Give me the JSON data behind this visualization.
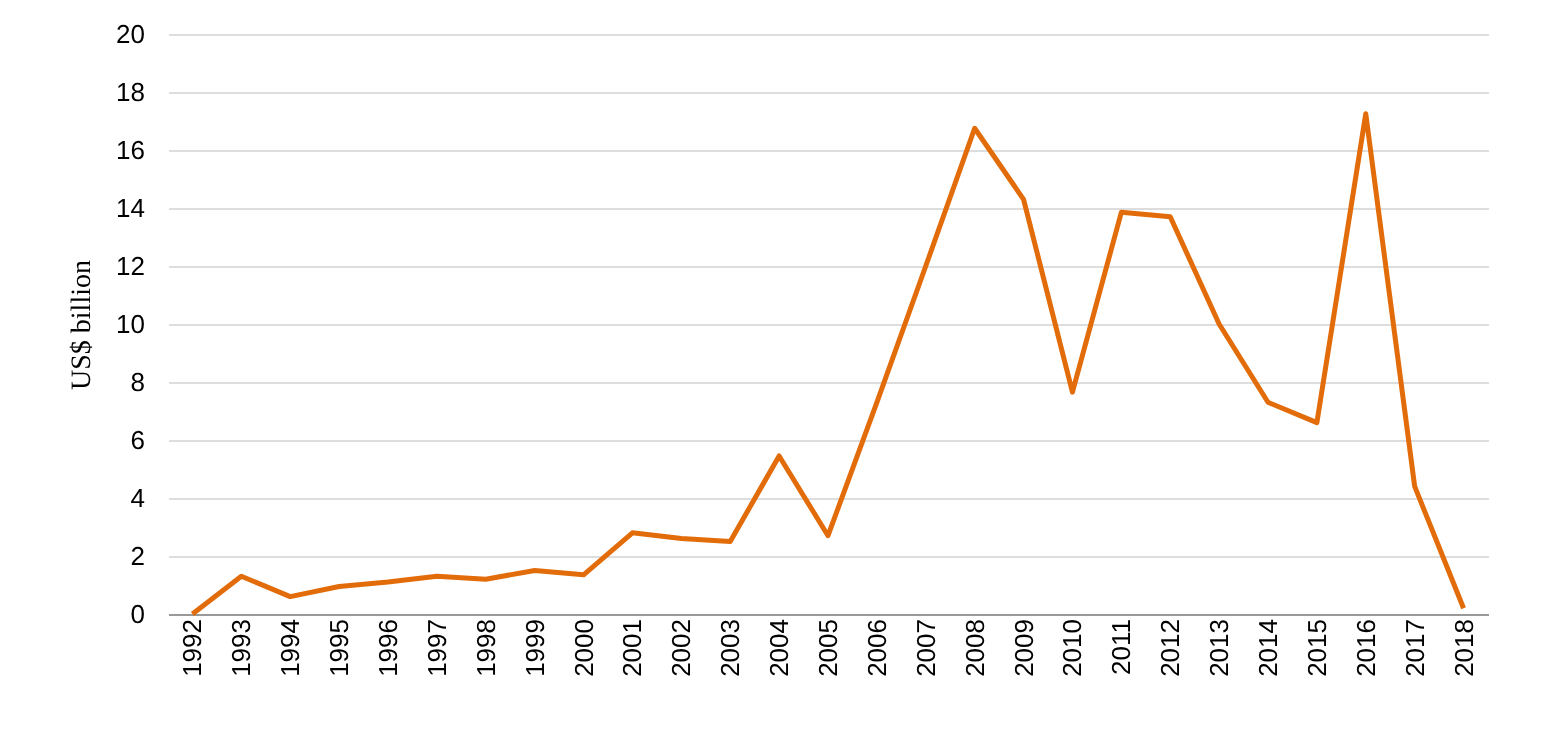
{
  "chart_data": {
    "type": "line",
    "ylabel": "US$ billion",
    "categories": [
      "1992",
      "1993",
      "1994",
      "1995",
      "1996",
      "1997",
      "1998",
      "1999",
      "2000",
      "2001",
      "2002",
      "2003",
      "2004",
      "2005",
      "2006",
      "2007",
      "2008",
      "2009",
      "2010",
      "2011",
      "2012",
      "2013",
      "2014",
      "2015",
      "2016",
      "2017",
      "2018"
    ],
    "series": [
      {
        "color": "#e36c0a",
        "values": [
          0,
          1.3,
          0.6,
          0.95,
          1.1,
          1.3,
          1.2,
          1.5,
          1.35,
          2.8,
          2.6,
          2.5,
          5.45,
          2.7,
          7.3,
          12,
          16.75,
          14.3,
          7.65,
          13.85,
          13.7,
          10,
          7.3,
          6.6,
          17.25,
          4.4,
          0.2
        ]
      }
    ],
    "ylim": [
      0,
      20
    ],
    "yticks": [
      0,
      2,
      4,
      6,
      8,
      10,
      12,
      14,
      16,
      18,
      20
    ],
    "grid": "y",
    "marker": "none",
    "line_style": "solid"
  }
}
